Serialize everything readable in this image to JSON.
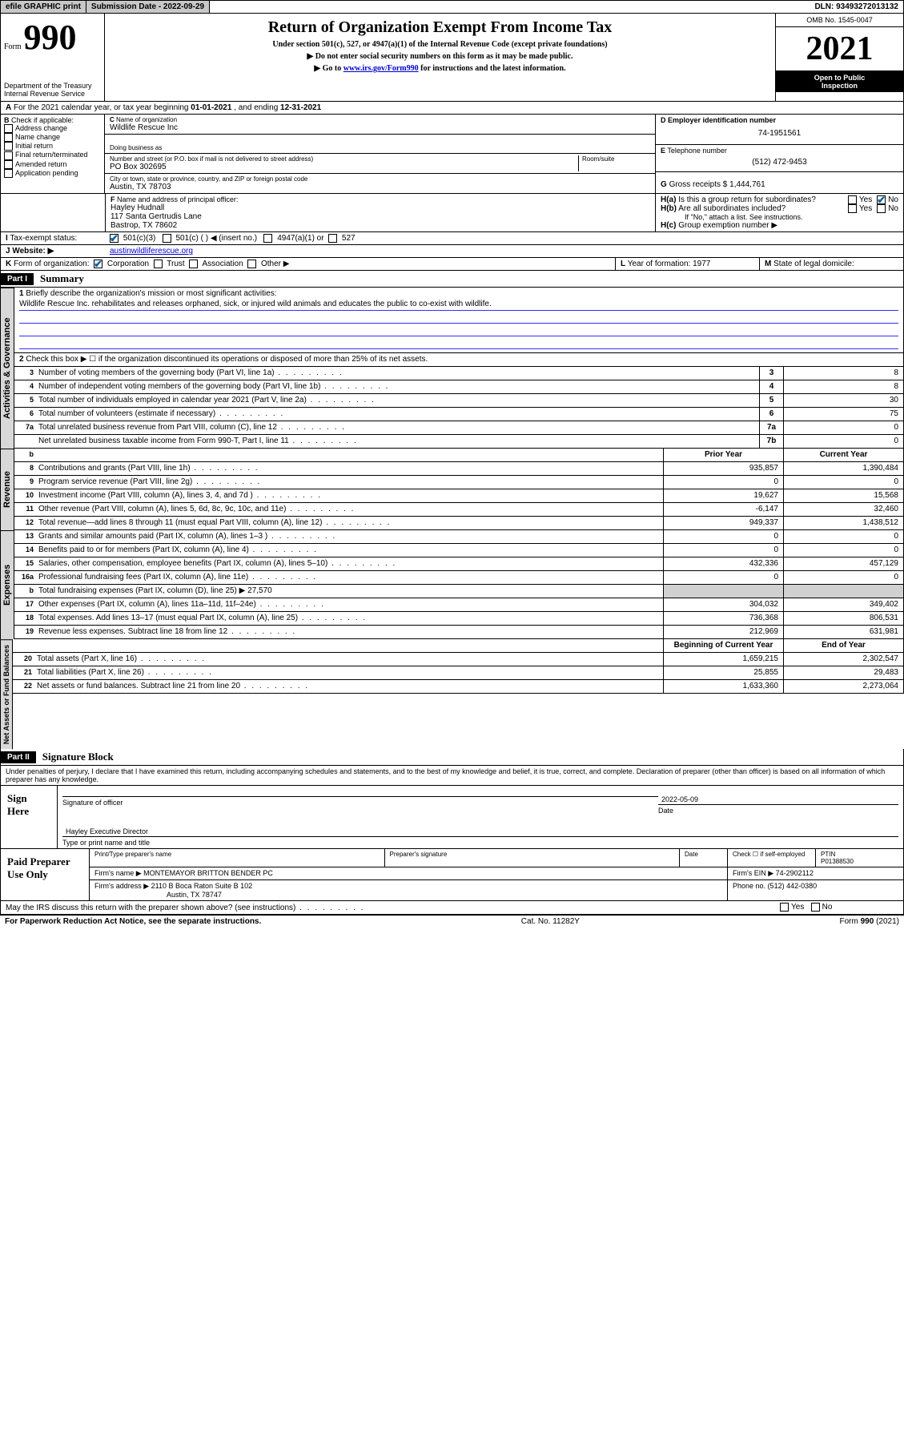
{
  "topbar": {
    "efile": "efile GRAPHIC print",
    "sub_label": "Submission Date - ",
    "sub_date": "2022-09-29",
    "dln_label": "DLN: ",
    "dln": "93493272013132"
  },
  "header": {
    "form_label": "Form",
    "form_num": "990",
    "dept": "Department of the Treasury",
    "irs": "Internal Revenue Service",
    "title": "Return of Organization Exempt From Income Tax",
    "sub1": "Under section 501(c), 527, or 4947(a)(1) of the Internal Revenue Code (except private foundations)",
    "sub2": "▶ Do not enter social security numbers on this form as it may be made public.",
    "sub3_pre": "▶ Go to ",
    "sub3_link": "www.irs.gov/Form990",
    "sub3_post": " for instructions and the latest information.",
    "omb": "OMB No. 1545-0047",
    "year": "2021",
    "inspect1": "Open to Public",
    "inspect2": "Inspection"
  },
  "sectionA": {
    "text_pre": "For the 2021 calendar year, or tax year beginning ",
    "begin": "01-01-2021",
    "mid": " , and ending ",
    "end": "12-31-2021"
  },
  "sectionB": {
    "header": "Check if applicable:",
    "opts": [
      "Address change",
      "Name change",
      "Initial return",
      "Final return/terminated",
      "Amended return",
      "Application pending"
    ]
  },
  "sectionC": {
    "name_label": "Name of organization",
    "name": "Wildlife Rescue Inc",
    "dba_label": "Doing business as",
    "addr_label": "Number and street (or P.O. box if mail is not delivered to street address)",
    "room_label": "Room/suite",
    "addr": "PO Box 302695",
    "city_label": "City or town, state or province, country, and ZIP or foreign postal code",
    "city": "Austin, TX  78703"
  },
  "sectionD": {
    "label": "Employer identification number",
    "val": "74-1951561"
  },
  "sectionE": {
    "label": "Telephone number",
    "val": "(512) 472-9453"
  },
  "sectionG": {
    "label": "Gross receipts $",
    "val": "1,444,761"
  },
  "sectionF": {
    "label": "Name and address of principal officer:",
    "name": "Hayley Hudnall",
    "addr1": "117 Santa Gertrudis Lane",
    "addr2": "Bastrop, TX  78602"
  },
  "sectionH": {
    "ha": "Is this a group return for subordinates?",
    "hb": "Are all subordinates included?",
    "hnote": "If \"No,\" attach a list. See instructions.",
    "hc": "Group exemption number ▶",
    "yes": "Yes",
    "no": "No"
  },
  "rowI": {
    "label": "Tax-exempt status:",
    "o1": "501(c)(3)",
    "o2": "501(c) (  ) ◀ (insert no.)",
    "o3": "4947(a)(1) or",
    "o4": "527"
  },
  "rowJ": {
    "label": "Website: ▶",
    "val": "austinwildliferescue.org"
  },
  "rowK": {
    "label": "Form of organization:",
    "o1": "Corporation",
    "o2": "Trust",
    "o3": "Association",
    "o4": "Other ▶"
  },
  "rowL": {
    "label": "Year of formation:",
    "val": "1977"
  },
  "rowM": {
    "label": "State of legal domicile:"
  },
  "part1": {
    "num": "Part I",
    "title": "Summary"
  },
  "vlabels": {
    "ag": "Activities & Governance",
    "rev": "Revenue",
    "exp": "Expenses",
    "na": "Net Assets or Fund Balances"
  },
  "mission": {
    "prompt": "Briefly describe the organization's mission or most significant activities:",
    "text": "Wildlife Rescue Inc. rehabilitates and releases orphaned, sick, or injured wild animals and educates the public to co-exist with wildlife."
  },
  "line2": "Check this box ▶ ☐ if the organization discontinued its operations or disposed of more than 25% of its net assets.",
  "govLines": [
    {
      "n": "3",
      "d": "Number of voting members of the governing body (Part VI, line 1a)",
      "b": "3",
      "v": "8"
    },
    {
      "n": "4",
      "d": "Number of independent voting members of the governing body (Part VI, line 1b)",
      "b": "4",
      "v": "8"
    },
    {
      "n": "5",
      "d": "Total number of individuals employed in calendar year 2021 (Part V, line 2a)",
      "b": "5",
      "v": "30"
    },
    {
      "n": "6",
      "d": "Total number of volunteers (estimate if necessary)",
      "b": "6",
      "v": "75"
    },
    {
      "n": "7a",
      "d": "Total unrelated business revenue from Part VIII, column (C), line 12",
      "b": "7a",
      "v": "0"
    },
    {
      "n": "",
      "d": "Net unrelated business taxable income from Form 990-T, Part I, line 11",
      "b": "7b",
      "v": "0"
    }
  ],
  "colHdr": {
    "b": "b",
    "prior": "Prior Year",
    "current": "Current Year",
    "beg": "Beginning of Current Year",
    "end": "End of Year"
  },
  "revLines": [
    {
      "n": "8",
      "d": "Contributions and grants (Part VIII, line 1h)",
      "p": "935,857",
      "c": "1,390,484"
    },
    {
      "n": "9",
      "d": "Program service revenue (Part VIII, line 2g)",
      "p": "0",
      "c": "0"
    },
    {
      "n": "10",
      "d": "Investment income (Part VIII, column (A), lines 3, 4, and 7d )",
      "p": "19,627",
      "c": "15,568"
    },
    {
      "n": "11",
      "d": "Other revenue (Part VIII, column (A), lines 5, 6d, 8c, 9c, 10c, and 11e)",
      "p": "-6,147",
      "c": "32,460"
    },
    {
      "n": "12",
      "d": "Total revenue—add lines 8 through 11 (must equal Part VIII, column (A), line 12)",
      "p": "949,337",
      "c": "1,438,512"
    }
  ],
  "expLines": [
    {
      "n": "13",
      "d": "Grants and similar amounts paid (Part IX, column (A), lines 1–3 )",
      "p": "0",
      "c": "0"
    },
    {
      "n": "14",
      "d": "Benefits paid to or for members (Part IX, column (A), line 4)",
      "p": "0",
      "c": "0"
    },
    {
      "n": "15",
      "d": "Salaries, other compensation, employee benefits (Part IX, column (A), lines 5–10)",
      "p": "432,336",
      "c": "457,129"
    },
    {
      "n": "16a",
      "d": "Professional fundraising fees (Part IX, column (A), line 11e)",
      "p": "0",
      "c": "0"
    }
  ],
  "line16b": {
    "n": "b",
    "d": "Total fundraising expenses (Part IX, column (D), line 25) ▶",
    "v": "27,570"
  },
  "expLines2": [
    {
      "n": "17",
      "d": "Other expenses (Part IX, column (A), lines 11a–11d, 11f–24e)",
      "p": "304,032",
      "c": "349,402"
    },
    {
      "n": "18",
      "d": "Total expenses. Add lines 13–17 (must equal Part IX, column (A), line 25)",
      "p": "736,368",
      "c": "806,531"
    },
    {
      "n": "19",
      "d": "Revenue less expenses. Subtract line 18 from line 12",
      "p": "212,969",
      "c": "631,981"
    }
  ],
  "naLines": [
    {
      "n": "20",
      "d": "Total assets (Part X, line 16)",
      "p": "1,659,215",
      "c": "2,302,547"
    },
    {
      "n": "21",
      "d": "Total liabilities (Part X, line 26)",
      "p": "25,855",
      "c": "29,483"
    },
    {
      "n": "22",
      "d": "Net assets or fund balances. Subtract line 21 from line 20",
      "p": "1,633,360",
      "c": "2,273,064"
    }
  ],
  "part2": {
    "num": "Part II",
    "title": "Signature Block"
  },
  "penalty": "Under penalties of perjury, I declare that I have examined this return, including accompanying schedules and statements, and to the best of my knowledge and belief, it is true, correct, and complete. Declaration of preparer (other than officer) is based on all information of which preparer has any knowledge.",
  "sign": {
    "here": "Sign Here",
    "sig_officer": "Signature of officer",
    "date_label": "Date",
    "date": "2022-05-09",
    "name_title": "Hayley Executive Director",
    "name_title_label": "Type or print name and title"
  },
  "paid": {
    "label": "Paid Preparer Use Only",
    "h1": "Print/Type preparer's name",
    "h2": "Preparer's signature",
    "h3": "Date",
    "h4": "Check ☐ if self-employed",
    "h5": "PTIN",
    "ptin": "P01388530",
    "firm_name_label": "Firm's name   ▶",
    "firm_name": "MONTEMAYOR BRITTON BENDER PC",
    "firm_ein_label": "Firm's EIN ▶",
    "firm_ein": "74-2902112",
    "firm_addr_label": "Firm's address ▶",
    "firm_addr1": "2110 B Boca Raton Suite B 102",
    "firm_addr2": "Austin, TX  78747",
    "phone_label": "Phone no.",
    "phone": "(512) 442-0380"
  },
  "discuss": "May the IRS discuss this return with the preparer shown above? (see instructions)",
  "footer": {
    "left": "For Paperwork Reduction Act Notice, see the separate instructions.",
    "mid": "Cat. No. 11282Y",
    "right": "Form 990 (2021)"
  }
}
